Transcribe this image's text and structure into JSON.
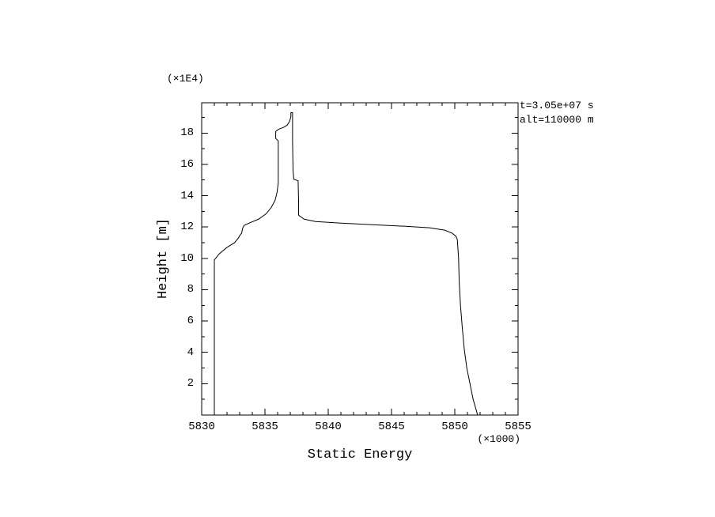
{
  "page": {
    "background": "#ffffff",
    "foreground": "#000000"
  },
  "labels": {
    "y_unit": "(×1E4)",
    "x_unit": "(×1000)",
    "x_title": "Static Energy",
    "y_title": "Height [m]",
    "annotation_line1": "t=3.05e+07 s",
    "annotation_line2": "alt=110000 m"
  },
  "chart_data": {
    "type": "line",
    "title": "",
    "xlabel": "Static Energy",
    "ylabel": "Height [m]",
    "x_unit_note": "(×1000)",
    "y_unit_note": "(×1E4)",
    "annotations": [
      "t=3.05e+07 s",
      "alt=110000 m"
    ],
    "xlim": [
      5830,
      5855
    ],
    "ylim": [
      0,
      19.93
    ],
    "x_major_ticks": [
      5830,
      5835,
      5840,
      5845,
      5850,
      5855
    ],
    "x_minor_step": 1,
    "y_major_ticks": [
      2,
      4,
      6,
      8,
      10,
      12,
      14,
      16,
      18
    ],
    "y_minor_step": 1,
    "grid": false,
    "legend": false,
    "line_color": "#000000",
    "frame_color": "#000000",
    "series": [
      {
        "name": "static-energy-profile",
        "x_units": "x1000",
        "y_units": "x1E4 m",
        "points": [
          [
            5831.0,
            0.0
          ],
          [
            5831.0,
            9.9
          ],
          [
            5831.4,
            10.3
          ],
          [
            5832.0,
            10.7
          ],
          [
            5832.6,
            11.0
          ],
          [
            5832.9,
            11.3
          ],
          [
            5833.05,
            11.5
          ],
          [
            5833.15,
            11.6
          ],
          [
            5833.25,
            11.95
          ],
          [
            5833.35,
            12.1
          ],
          [
            5833.9,
            12.3
          ],
          [
            5834.5,
            12.5
          ],
          [
            5835.1,
            12.85
          ],
          [
            5835.5,
            13.25
          ],
          [
            5835.8,
            13.7
          ],
          [
            5835.95,
            14.2
          ],
          [
            5836.05,
            14.8
          ],
          [
            5836.05,
            17.5
          ],
          [
            5835.85,
            17.65
          ],
          [
            5835.85,
            18.1
          ],
          [
            5836.1,
            18.25
          ],
          [
            5836.45,
            18.35
          ],
          [
            5836.75,
            18.5
          ],
          [
            5836.95,
            18.75
          ],
          [
            5837.05,
            19.05
          ],
          [
            5837.05,
            19.3
          ],
          [
            5837.18,
            19.3
          ],
          [
            5837.18,
            17.5
          ],
          [
            5837.22,
            15.6
          ],
          [
            5837.28,
            15.05
          ],
          [
            5837.62,
            14.95
          ],
          [
            5837.66,
            13.5
          ],
          [
            5837.66,
            12.75
          ],
          [
            5838.1,
            12.5
          ],
          [
            5839.0,
            12.35
          ],
          [
            5841.0,
            12.25
          ],
          [
            5843.5,
            12.15
          ],
          [
            5846.0,
            12.05
          ],
          [
            5848.0,
            11.95
          ],
          [
            5849.2,
            11.8
          ],
          [
            5849.8,
            11.6
          ],
          [
            5850.1,
            11.4
          ],
          [
            5850.2,
            11.2
          ],
          [
            5850.3,
            10.0
          ],
          [
            5850.35,
            8.5
          ],
          [
            5850.45,
            7.0
          ],
          [
            5850.6,
            5.5
          ],
          [
            5850.75,
            4.2
          ],
          [
            5850.95,
            3.0
          ],
          [
            5851.2,
            2.0
          ],
          [
            5851.45,
            1.0
          ],
          [
            5851.7,
            0.3
          ],
          [
            5851.8,
            0.0
          ]
        ]
      }
    ]
  }
}
